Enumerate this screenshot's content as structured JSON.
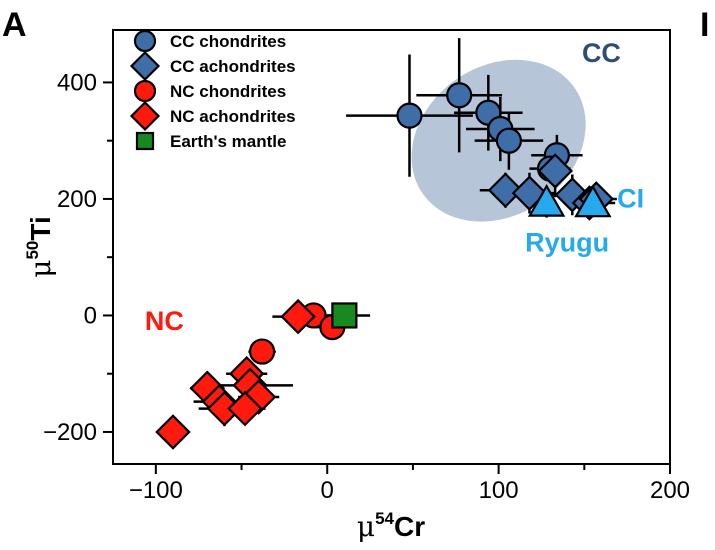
{
  "panel_label": "A",
  "next_panel_label": "I",
  "chart_data": {
    "type": "scatter",
    "title": "",
    "xlabel": {
      "prefix": "μ",
      "sup": "54",
      "main": "Cr"
    },
    "ylabel": {
      "prefix": "μ",
      "sup": "50",
      "main": "Ti"
    },
    "xlim": [
      -125,
      200
    ],
    "ylim": [
      -255,
      490
    ],
    "x_ticks": [
      -100,
      0,
      100,
      200
    ],
    "x_tick_labels": [
      "−100",
      "0",
      "100",
      "200"
    ],
    "y_ticks": [
      -200,
      0,
      200,
      400
    ],
    "y_tick_labels": [
      "−200",
      "0",
      "200",
      "400"
    ],
    "grid": false,
    "legend_position": "top-left",
    "colors": {
      "cc": "#3f6da8",
      "nc": "#ff1a0d",
      "earth": "#17891f",
      "ryugu": "#27a9f0",
      "cc_region": "#9db1cb"
    },
    "cc_region": {
      "label": "CC",
      "center": [
        100,
        300
      ],
      "rx_data": 54,
      "ry_data": 128,
      "angle_deg": 35
    },
    "annotations": [
      {
        "text": "CC",
        "x": 160,
        "y": 435,
        "color": "#2c4d78"
      },
      {
        "text": "NC",
        "x": -95,
        "y": -25,
        "color": "#ff1a0d"
      },
      {
        "text": "CI",
        "x": 177,
        "y": 185,
        "color": "#27a9f0"
      },
      {
        "text": "Ryugu",
        "x": 140,
        "y": 110,
        "color": "#27a9f0"
      }
    ],
    "series": [
      {
        "name": "CC chondrites",
        "marker": "circle",
        "color": "#3f6da8",
        "points": [
          {
            "x": 48,
            "y": 343,
            "xerr": 37,
            "yerr": 105
          },
          {
            "x": 77,
            "y": 378,
            "xerr": 25,
            "yerr": 98
          },
          {
            "x": 94,
            "y": 348,
            "xerr": 20,
            "yerr": 65
          },
          {
            "x": 101,
            "y": 320,
            "xerr": 20,
            "yerr": 55
          },
          {
            "x": 106,
            "y": 300,
            "xerr": 20,
            "yerr": 50
          },
          {
            "x": 134,
            "y": 275,
            "xerr": 15,
            "yerr": 35
          },
          {
            "x": 130,
            "y": 252,
            "xerr": 12,
            "yerr": 25
          }
        ]
      },
      {
        "name": "CC achondrites",
        "marker": "diamond",
        "color": "#3f6da8",
        "points": [
          {
            "x": 104,
            "y": 215,
            "xerr": 15,
            "yerr": 30
          },
          {
            "x": 118,
            "y": 210,
            "xerr": 15,
            "yerr": 35
          },
          {
            "x": 133,
            "y": 248,
            "xerr": 10,
            "yerr": 45
          },
          {
            "x": 143,
            "y": 207,
            "xerr": 15,
            "yerr": 35
          },
          {
            "x": 153,
            "y": 193,
            "xerr": 15,
            "yerr": 25
          },
          {
            "x": 157,
            "y": 200,
            "xerr": 12,
            "yerr": 25
          }
        ]
      },
      {
        "name": "NC chondrites",
        "marker": "circle",
        "color": "#ff1a0d",
        "points": [
          {
            "x": -38,
            "y": -62,
            "xerr": 8,
            "yerr": 15
          },
          {
            "x": -8,
            "y": 0,
            "xerr": 10,
            "yerr": 15
          },
          {
            "x": 3,
            "y": -20,
            "xerr": 10,
            "yerr": 15
          }
        ]
      },
      {
        "name": "NC achondrites",
        "marker": "diamond",
        "color": "#ff1a0d",
        "points": [
          {
            "x": -90,
            "y": -200,
            "xerr": 8,
            "yerr": 15
          },
          {
            "x": -70,
            "y": -125,
            "xerr": 10,
            "yerr": 20
          },
          {
            "x": -63,
            "y": -148,
            "xerr": 15,
            "yerr": 25
          },
          {
            "x": -60,
            "y": -160,
            "xerr": 15,
            "yerr": 30
          },
          {
            "x": -47,
            "y": -100,
            "xerr": 12,
            "yerr": 25
          },
          {
            "x": -45,
            "y": -120,
            "xerr": 25,
            "yerr": 25
          },
          {
            "x": -40,
            "y": -140,
            "xerr": 12,
            "yerr": 20
          },
          {
            "x": -48,
            "y": -160,
            "xerr": 12,
            "yerr": 25
          },
          {
            "x": -17,
            "y": -2,
            "xerr": 15,
            "yerr": 20
          }
        ]
      },
      {
        "name": "Earth's mantle",
        "marker": "square",
        "color": "#17891f",
        "points": [
          {
            "x": 10,
            "y": 0,
            "xerr": 15,
            "yerr": 10
          }
        ]
      },
      {
        "name": "Ryugu",
        "marker": "triangle",
        "color": "#27a9f0",
        "in_legend": false,
        "points": [
          {
            "x": 128,
            "y": 193,
            "xerr": 5,
            "yerr": 25
          }
        ]
      },
      {
        "name": "CI",
        "marker": "triangle",
        "color": "#27a9f0",
        "in_legend": false,
        "points": [
          {
            "x": 155,
            "y": 192,
            "xerr": 5,
            "yerr": 10
          }
        ]
      }
    ]
  }
}
